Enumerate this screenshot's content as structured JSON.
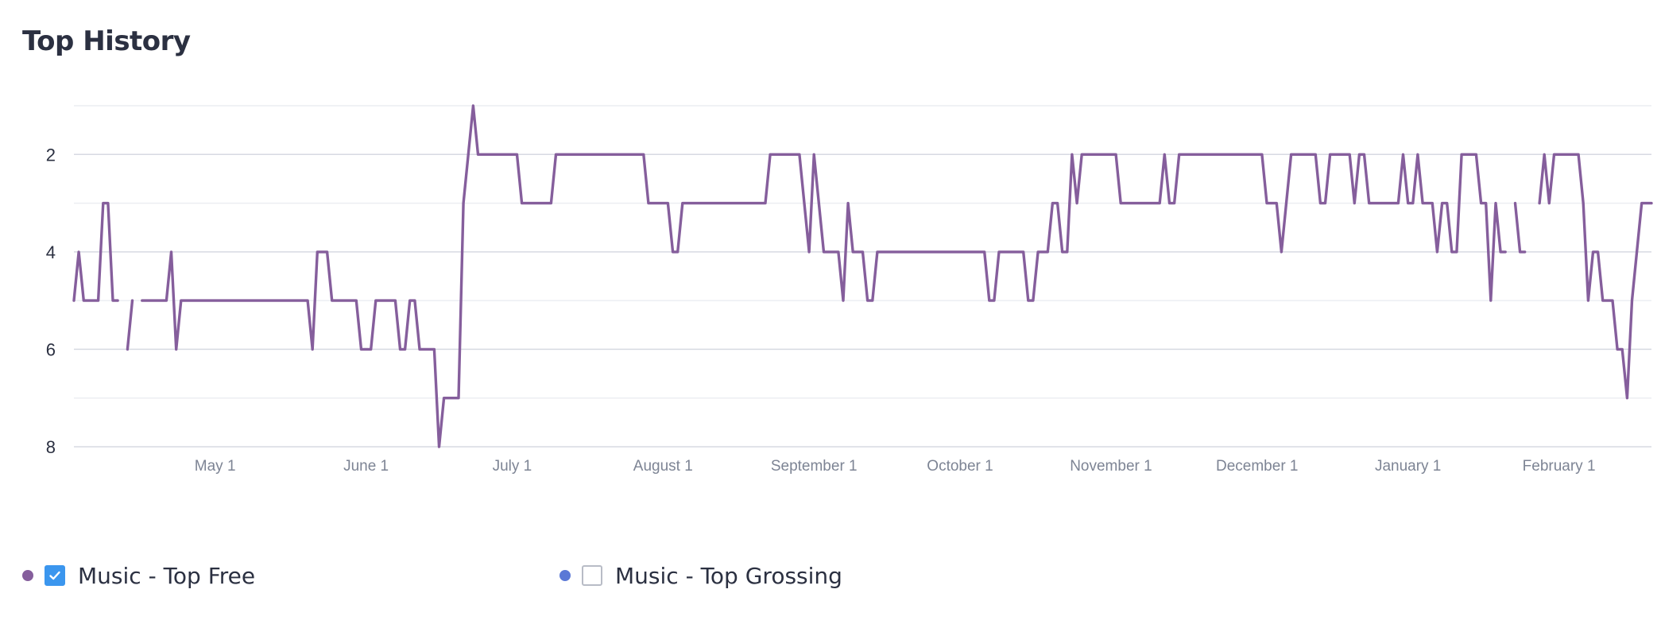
{
  "title": "Top History",
  "colors": {
    "series_top_free": "#855e9c",
    "series_top_grossing": "#5b78d6",
    "grid": "#d7dae2",
    "grid_minor": "#eceef2",
    "axis_text": "#7d8494",
    "y_text": "#2b3041"
  },
  "chart_data": {
    "type": "line",
    "title": "Top History",
    "y_axis": {
      "reversed": true,
      "range": [
        1,
        8
      ],
      "tick_labels": [
        "2",
        "4",
        "6",
        "8"
      ],
      "tick_values": [
        2,
        4,
        6,
        8
      ],
      "minor_gridlines": [
        1,
        3,
        5,
        7
      ]
    },
    "x_axis": {
      "start": "2017-04-02",
      "end": "2018-02-20",
      "tick_labels": [
        "May 1",
        "June 1",
        "July 1",
        "August 1",
        "September 1",
        "October 1",
        "November 1",
        "December 1",
        "January 1",
        "February 1"
      ],
      "tick_dates": [
        "2017-05-01",
        "2017-06-01",
        "2017-07-01",
        "2017-08-01",
        "2017-09-01",
        "2017-10-01",
        "2017-11-01",
        "2017-12-01",
        "2018-01-01",
        "2018-02-01"
      ]
    },
    "grid": true,
    "legend_placement": "bottom-left",
    "series": [
      {
        "name": "Music - Top Free",
        "checked": true,
        "visible": true,
        "color": "#855e9c",
        "points": [
          [
            "2017-04-02",
            5
          ],
          [
            "2017-04-03",
            4
          ],
          [
            "2017-04-04",
            5
          ],
          [
            "2017-04-07",
            5
          ],
          [
            "2017-04-08",
            3
          ],
          [
            "2017-04-09",
            3
          ],
          [
            "2017-04-10",
            5
          ],
          [
            "2017-04-11",
            5
          ],
          null,
          [
            "2017-04-13",
            6
          ],
          [
            "2017-04-14",
            5
          ],
          null,
          [
            "2017-04-16",
            5
          ],
          [
            "2017-04-21",
            5
          ],
          [
            "2017-04-22",
            4
          ],
          [
            "2017-04-23",
            6
          ],
          [
            "2017-04-24",
            5
          ],
          [
            "2017-05-20",
            5
          ],
          [
            "2017-05-21",
            6
          ],
          [
            "2017-05-22",
            4
          ],
          [
            "2017-05-24",
            4
          ],
          [
            "2017-05-25",
            5
          ],
          [
            "2017-05-30",
            5
          ],
          [
            "2017-05-31",
            6
          ],
          [
            "2017-06-02",
            6
          ],
          [
            "2017-06-03",
            5
          ],
          [
            "2017-06-07",
            5
          ],
          [
            "2017-06-08",
            6
          ],
          [
            "2017-06-09",
            6
          ],
          [
            "2017-06-10",
            5
          ],
          [
            "2017-06-11",
            5
          ],
          [
            "2017-06-12",
            6
          ],
          [
            "2017-06-15",
            6
          ],
          [
            "2017-06-16",
            8
          ],
          [
            "2017-06-17",
            7
          ],
          [
            "2017-06-20",
            7
          ],
          [
            "2017-06-21",
            3
          ],
          [
            "2017-06-23",
            1
          ],
          [
            "2017-06-24",
            2
          ],
          [
            "2017-07-02",
            2
          ],
          [
            "2017-07-03",
            3
          ],
          [
            "2017-07-09",
            3
          ],
          [
            "2017-07-10",
            2
          ],
          [
            "2017-07-28",
            2
          ],
          [
            "2017-07-29",
            3
          ],
          [
            "2017-08-02",
            3
          ],
          [
            "2017-08-03",
            4
          ],
          [
            "2017-08-04",
            4
          ],
          [
            "2017-08-05",
            3
          ],
          [
            "2017-08-22",
            3
          ],
          [
            "2017-08-23",
            2
          ],
          [
            "2017-08-29",
            2
          ],
          [
            "2017-08-31",
            4
          ],
          [
            "2017-09-01",
            2
          ],
          [
            "2017-09-03",
            4
          ],
          [
            "2017-09-06",
            4
          ],
          [
            "2017-09-07",
            5
          ],
          [
            "2017-09-08",
            3
          ],
          [
            "2017-09-09",
            4
          ],
          [
            "2017-09-11",
            4
          ],
          [
            "2017-09-12",
            5
          ],
          [
            "2017-09-13",
            5
          ],
          [
            "2017-09-14",
            4
          ],
          [
            "2017-10-06",
            4
          ],
          [
            "2017-10-07",
            5
          ],
          [
            "2017-10-08",
            5
          ],
          [
            "2017-10-09",
            4
          ],
          [
            "2017-10-14",
            4
          ],
          [
            "2017-10-15",
            5
          ],
          [
            "2017-10-16",
            5
          ],
          [
            "2017-10-17",
            4
          ],
          [
            "2017-10-19",
            4
          ],
          [
            "2017-10-20",
            3
          ],
          [
            "2017-10-21",
            3
          ],
          [
            "2017-10-22",
            4
          ],
          [
            "2017-10-23",
            4
          ],
          [
            "2017-10-24",
            2
          ],
          [
            "2017-10-25",
            3
          ],
          [
            "2017-10-26",
            2
          ],
          [
            "2017-11-02",
            2
          ],
          [
            "2017-11-03",
            3
          ],
          [
            "2017-11-11",
            3
          ],
          [
            "2017-11-12",
            2
          ],
          [
            "2017-11-13",
            3
          ],
          [
            "2017-11-14",
            3
          ],
          [
            "2017-11-15",
            2
          ],
          [
            "2017-12-02",
            2
          ],
          [
            "2017-12-03",
            3
          ],
          [
            "2017-12-05",
            3
          ],
          [
            "2017-12-06",
            4
          ],
          [
            "2017-12-08",
            2
          ],
          [
            "2017-12-13",
            2
          ],
          [
            "2017-12-14",
            3
          ],
          [
            "2017-12-15",
            3
          ],
          [
            "2017-12-16",
            2
          ],
          [
            "2017-12-20",
            2
          ],
          [
            "2017-12-21",
            3
          ],
          [
            "2017-12-22",
            2
          ],
          [
            "2017-12-23",
            2
          ],
          [
            "2017-12-24",
            3
          ],
          [
            "2017-12-30",
            3
          ],
          [
            "2017-12-31",
            2
          ],
          [
            "2018-01-01",
            3
          ],
          [
            "2018-01-02",
            3
          ],
          [
            "2018-01-03",
            2
          ],
          [
            "2018-01-04",
            3
          ],
          [
            "2018-01-06",
            3
          ],
          [
            "2018-01-07",
            4
          ],
          [
            "2018-01-08",
            3
          ],
          [
            "2018-01-09",
            3
          ],
          [
            "2018-01-10",
            4
          ],
          [
            "2018-01-11",
            4
          ],
          [
            "2018-01-12",
            2
          ],
          [
            "2018-01-15",
            2
          ],
          [
            "2018-01-16",
            3
          ],
          [
            "2018-01-17",
            3
          ],
          [
            "2018-01-18",
            5
          ],
          [
            "2018-01-19",
            3
          ],
          [
            "2018-01-20",
            4
          ],
          [
            "2018-01-21",
            4
          ],
          null,
          [
            "2018-01-23",
            3
          ],
          [
            "2018-01-24",
            4
          ],
          [
            "2018-01-25",
            4
          ],
          null,
          [
            "2018-01-28",
            3
          ],
          [
            "2018-01-29",
            2
          ],
          [
            "2018-01-30",
            3
          ],
          [
            "2018-01-31",
            2
          ],
          [
            "2018-02-05",
            2
          ],
          [
            "2018-02-06",
            3
          ],
          [
            "2018-02-07",
            5
          ],
          [
            "2018-02-08",
            4
          ],
          [
            "2018-02-09",
            4
          ],
          [
            "2018-02-10",
            5
          ],
          [
            "2018-02-12",
            5
          ],
          [
            "2018-02-13",
            6
          ],
          [
            "2018-02-14",
            6
          ],
          [
            "2018-02-15",
            7
          ],
          [
            "2018-02-16",
            5
          ],
          [
            "2018-02-18",
            3
          ],
          [
            "2018-02-20",
            3
          ]
        ]
      },
      {
        "name": "Music - Top Grossing",
        "checked": false,
        "visible": false,
        "color": "#5b78d6",
        "points": []
      }
    ]
  },
  "legend": {
    "items": [
      {
        "label": "Music - Top Free",
        "checked": true
      },
      {
        "label": "Music - Top Grossing",
        "checked": false
      }
    ]
  }
}
